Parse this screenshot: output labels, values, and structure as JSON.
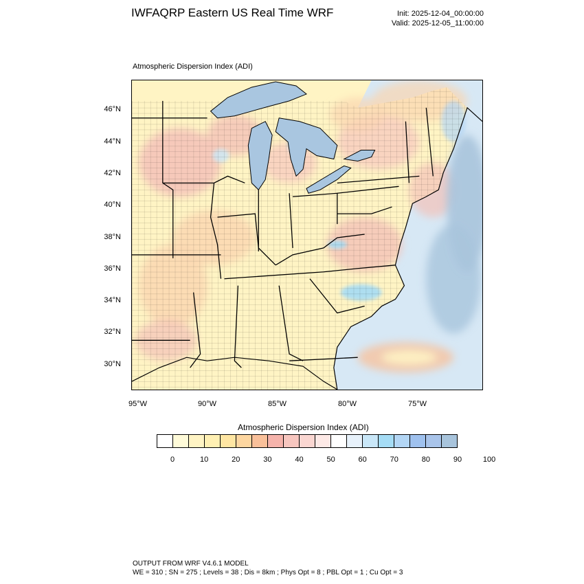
{
  "header": {
    "title": "IWFAQRP Eastern US Real Time WRF",
    "init": "Init: 2025-12-04_00:00:00",
    "valid": "Valid: 2025-12-05_11:00:00"
  },
  "map": {
    "subtitle": "Atmospheric Dispersion Index   (ADI)",
    "lat_labels": [
      "46°N",
      "44°N",
      "42°N",
      "40°N",
      "38°N",
      "36°N",
      "34°N",
      "32°N",
      "30°N"
    ],
    "lon_labels": [
      "95°W",
      "90°W",
      "85°W",
      "80°W",
      "75°W"
    ],
    "colors": {
      "land_base": "#fff4c4",
      "water": "#a9c6e0",
      "ocean_light": "#d7e8f5",
      "warm_pink": "#f4c2b8",
      "warm_orange": "#fbd6b0",
      "boundary": "#000000"
    }
  },
  "colorbar": {
    "title": "Atmospheric Dispersion Index  (ADI)",
    "colors": [
      "#ffffff",
      "#fffbd9",
      "#fff4c4",
      "#fff0b3",
      "#ffe6a3",
      "#fdd6a0",
      "#f9c09a",
      "#f5b3ab",
      "#f7c6bf",
      "#fad6d1",
      "#fde9e6",
      "#ffffff",
      "#e8f2fb",
      "#c9e7f8",
      "#a5dcf5",
      "#b3d6f5",
      "#9fc1ee",
      "#a9c4ea",
      "#a8c4dc"
    ],
    "labels": [
      "0",
      "10",
      "20",
      "30",
      "40",
      "50",
      "60",
      "70",
      "80",
      "90",
      "100"
    ]
  },
  "footer": {
    "line1": "OUTPUT FROM WRF V4.6.1 MODEL",
    "line2": "WE = 310 ; SN = 275 ; Levels = 38 ; Dis = 8km ; Phys Opt = 8 ; PBL Opt = 1 ; Cu Opt = 3"
  }
}
